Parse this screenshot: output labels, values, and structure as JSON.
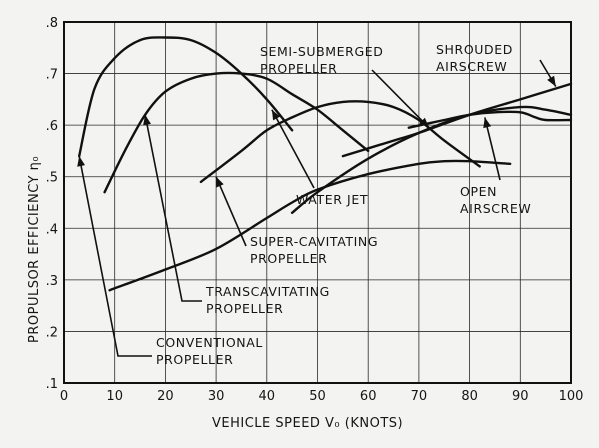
{
  "chart_data": {
    "type": "line",
    "title": "",
    "xlabel": "VEHICLE SPEED V₀ (KNOTS)",
    "ylabel": "PROPULSOR EFFICIENCY η₀",
    "xlim": [
      0,
      100
    ],
    "ylim": [
      0.1,
      0.8
    ],
    "grid": true,
    "x_ticks": [
      "0",
      "10",
      "20",
      "30",
      "40",
      "50",
      "60",
      "70",
      "80",
      "90",
      "100"
    ],
    "y_ticks": [
      ".1",
      ".2",
      ".3",
      ".4",
      ".5",
      ".6",
      ".7",
      ".8"
    ],
    "series": [
      {
        "name": "CONVENTIONAL\nPROPELLER",
        "x": [
          3,
          6,
          10,
          15,
          20,
          25,
          30,
          35,
          40,
          45
        ],
        "y": [
          0.54,
          0.67,
          0.73,
          0.765,
          0.77,
          0.765,
          0.74,
          0.7,
          0.65,
          0.59
        ]
      },
      {
        "name": "TRANSCAVITATING\nPROPELLER",
        "x": [
          8,
          12,
          16,
          20,
          25,
          30,
          35,
          40,
          45,
          50,
          55,
          60
        ],
        "y": [
          0.47,
          0.55,
          0.62,
          0.665,
          0.69,
          0.7,
          0.7,
          0.69,
          0.66,
          0.63,
          0.59,
          0.55
        ]
      },
      {
        "name": "SUPER-CAVITATING\nPROPELLER",
        "x": [
          27,
          35,
          40,
          45,
          50,
          55,
          60,
          65,
          70,
          75,
          82
        ],
        "y": [
          0.49,
          0.55,
          0.59,
          0.615,
          0.635,
          0.645,
          0.645,
          0.635,
          0.61,
          0.57,
          0.52
        ]
      },
      {
        "name": "WATER JET",
        "x": [
          9,
          20,
          30,
          40,
          45,
          50,
          60,
          70,
          75,
          80,
          88
        ],
        "y": [
          0.28,
          0.32,
          0.36,
          0.42,
          0.45,
          0.475,
          0.505,
          0.525,
          0.53,
          0.53,
          0.525
        ]
      },
      {
        "name": "SEMI-SUBMERGED\nPROPELLER",
        "x": [
          45,
          50,
          60,
          70,
          80,
          90,
          95,
          100
        ],
        "y": [
          0.43,
          0.47,
          0.535,
          0.585,
          0.62,
          0.635,
          0.63,
          0.62
        ]
      },
      {
        "name": "OPEN\nAIRSCREW",
        "x": [
          68,
          75,
          80,
          85,
          90,
          93,
          95,
          100
        ],
        "y": [
          0.595,
          0.61,
          0.62,
          0.625,
          0.625,
          0.615,
          0.61,
          0.61
        ]
      },
      {
        "name": "SHROUDED\nAIRSCREW",
        "x": [
          55,
          65,
          70,
          80,
          90,
          100
        ],
        "y": [
          0.54,
          0.57,
          0.585,
          0.62,
          0.65,
          0.68
        ]
      }
    ],
    "annotations": [
      {
        "text": "CONVENTIONAL\nPROPELLER",
        "points_to": [
          3,
          0.54
        ]
      },
      {
        "text": "TRANSCAVITATING\nPROPELLER",
        "points_to": [
          16,
          0.62
        ]
      },
      {
        "text": "SUPER-CAVITATING\nPROPELLER",
        "points_to": [
          30,
          0.5
        ]
      },
      {
        "text": "WATER JET",
        "points_to": [
          41,
          0.63
        ]
      },
      {
        "text": "SEMI-SUBMERGED\nPROPELLER",
        "points_to": [
          72,
          0.595
        ]
      },
      {
        "text": "OPEN\nAIRSCREW",
        "points_to": [
          83,
          0.615
        ]
      },
      {
        "text": "SHROUDED\nAIRSCREW",
        "points_to": [
          97,
          0.675
        ]
      }
    ]
  }
}
